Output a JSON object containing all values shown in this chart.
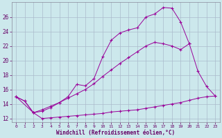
{
  "bg_color": "#cce8ec",
  "line_color": "#990099",
  "grid_color": "#aabbcc",
  "xlabel": "Windchill (Refroidissement éolien,°C)",
  "xlabel_color": "#660066",
  "tick_color": "#660066",
  "xlim": [
    -0.5,
    23.5
  ],
  "ylim": [
    11.5,
    28.0
  ],
  "yticks": [
    12,
    14,
    16,
    18,
    20,
    22,
    24,
    26
  ],
  "xticks": [
    0,
    1,
    2,
    3,
    4,
    5,
    6,
    7,
    8,
    9,
    10,
    11,
    12,
    13,
    14,
    15,
    16,
    17,
    18,
    19,
    20,
    21,
    22,
    23
  ],
  "line1_x": [
    0,
    1,
    2,
    3,
    4,
    5,
    6,
    7,
    8,
    9,
    10,
    11,
    12,
    13,
    14,
    15,
    16,
    17,
    18,
    19,
    20,
    21,
    22,
    23
  ],
  "line1_y": [
    15.0,
    14.4,
    12.8,
    12.0,
    12.1,
    12.2,
    12.3,
    12.4,
    12.5,
    12.6,
    12.7,
    12.9,
    13.0,
    13.1,
    13.2,
    13.4,
    13.6,
    13.8,
    14.0,
    14.2,
    14.5,
    14.8,
    15.0,
    15.1
  ],
  "line2_x": [
    0,
    2,
    3,
    4,
    5,
    6,
    7,
    8,
    9,
    10,
    11,
    12,
    13,
    14,
    15,
    16,
    17,
    18,
    19,
    20
  ],
  "line2_y": [
    15.0,
    12.8,
    13.2,
    13.7,
    14.2,
    14.8,
    15.4,
    16.0,
    16.8,
    17.8,
    18.7,
    19.6,
    20.4,
    21.2,
    22.0,
    22.5,
    22.3,
    22.0,
    21.5,
    22.3
  ],
  "line3_x": [
    0,
    1,
    2,
    3,
    4,
    5,
    6,
    7,
    8,
    9,
    10,
    11,
    12,
    13,
    14,
    15,
    16,
    17,
    18,
    19,
    20,
    21,
    22,
    23
  ],
  "line3_y": [
    15.0,
    14.4,
    12.8,
    13.0,
    13.5,
    14.2,
    15.0,
    16.7,
    16.5,
    17.5,
    20.5,
    22.8,
    23.8,
    24.2,
    24.5,
    26.0,
    26.4,
    27.3,
    27.2,
    25.3,
    22.3,
    18.5,
    16.4,
    15.1
  ]
}
